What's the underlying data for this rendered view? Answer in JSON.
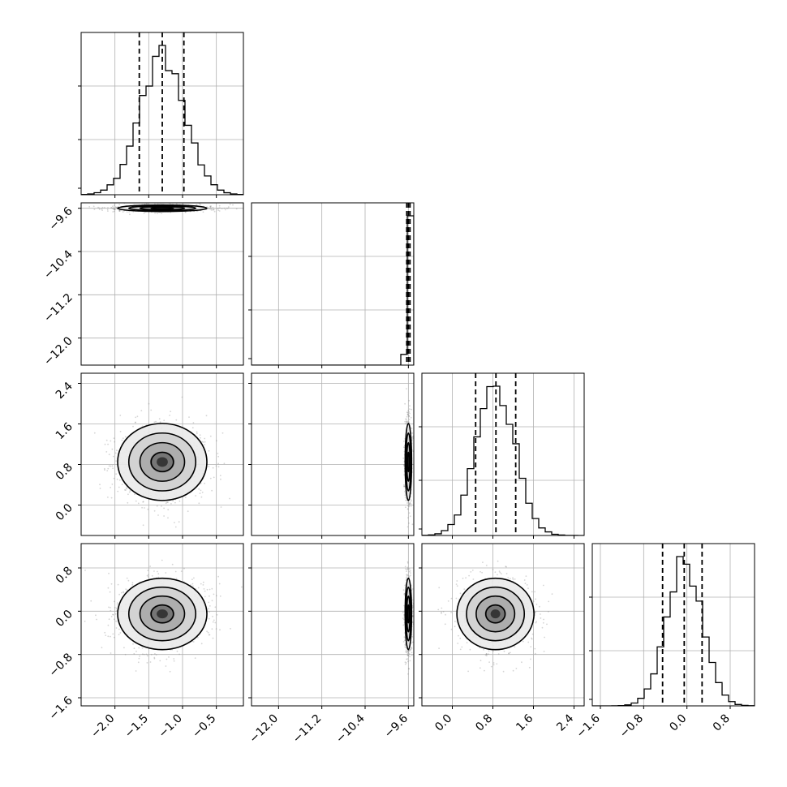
{
  "chart_data": {
    "type": "corner",
    "parameters": 4,
    "ranges": [
      [
        -2.5,
        -0.1
      ],
      [
        -12.5,
        -9.5
      ],
      [
        -0.6,
        2.6
      ],
      [
        -1.75,
        1.25
      ]
    ],
    "ticks": [
      [
        -2.0,
        -1.5,
        -1.0,
        -0.5
      ],
      [
        -12.0,
        -11.2,
        -10.4,
        -9.6
      ],
      [
        0.0,
        0.8,
        1.6,
        2.4
      ],
      [
        -1.6,
        -0.8,
        0.0,
        0.8
      ]
    ],
    "tick_labels": [
      [
        "−2.0",
        "−1.5",
        "−1.0",
        "−0.5"
      ],
      [
        "−12.0",
        "−11.2",
        "−10.4",
        "−9.6"
      ],
      [
        "0.0",
        "0.8",
        "1.6",
        "2.4"
      ],
      [
        "−1.6",
        "−0.8",
        "0.0",
        "0.8"
      ]
    ],
    "means": [
      -1.3,
      -9.6,
      0.85,
      -0.05
    ],
    "sigmas": [
      0.33,
      0.03,
      0.38,
      0.33
    ],
    "quantiles": [
      [
        -1.64,
        -1.3,
        -0.98
      ],
      [
        -9.63,
        -9.6,
        -9.57
      ],
      [
        0.46,
        0.86,
        1.25
      ],
      [
        -0.45,
        -0.05,
        0.28
      ]
    ],
    "correlations": [
      [
        0,
        1,
        2
      ],
      [
        0,
        1,
        3
      ],
      [
        0,
        2,
        3
      ]
    ],
    "grid": true,
    "histogram_style": "step",
    "quantile_line_style": "dashed"
  }
}
